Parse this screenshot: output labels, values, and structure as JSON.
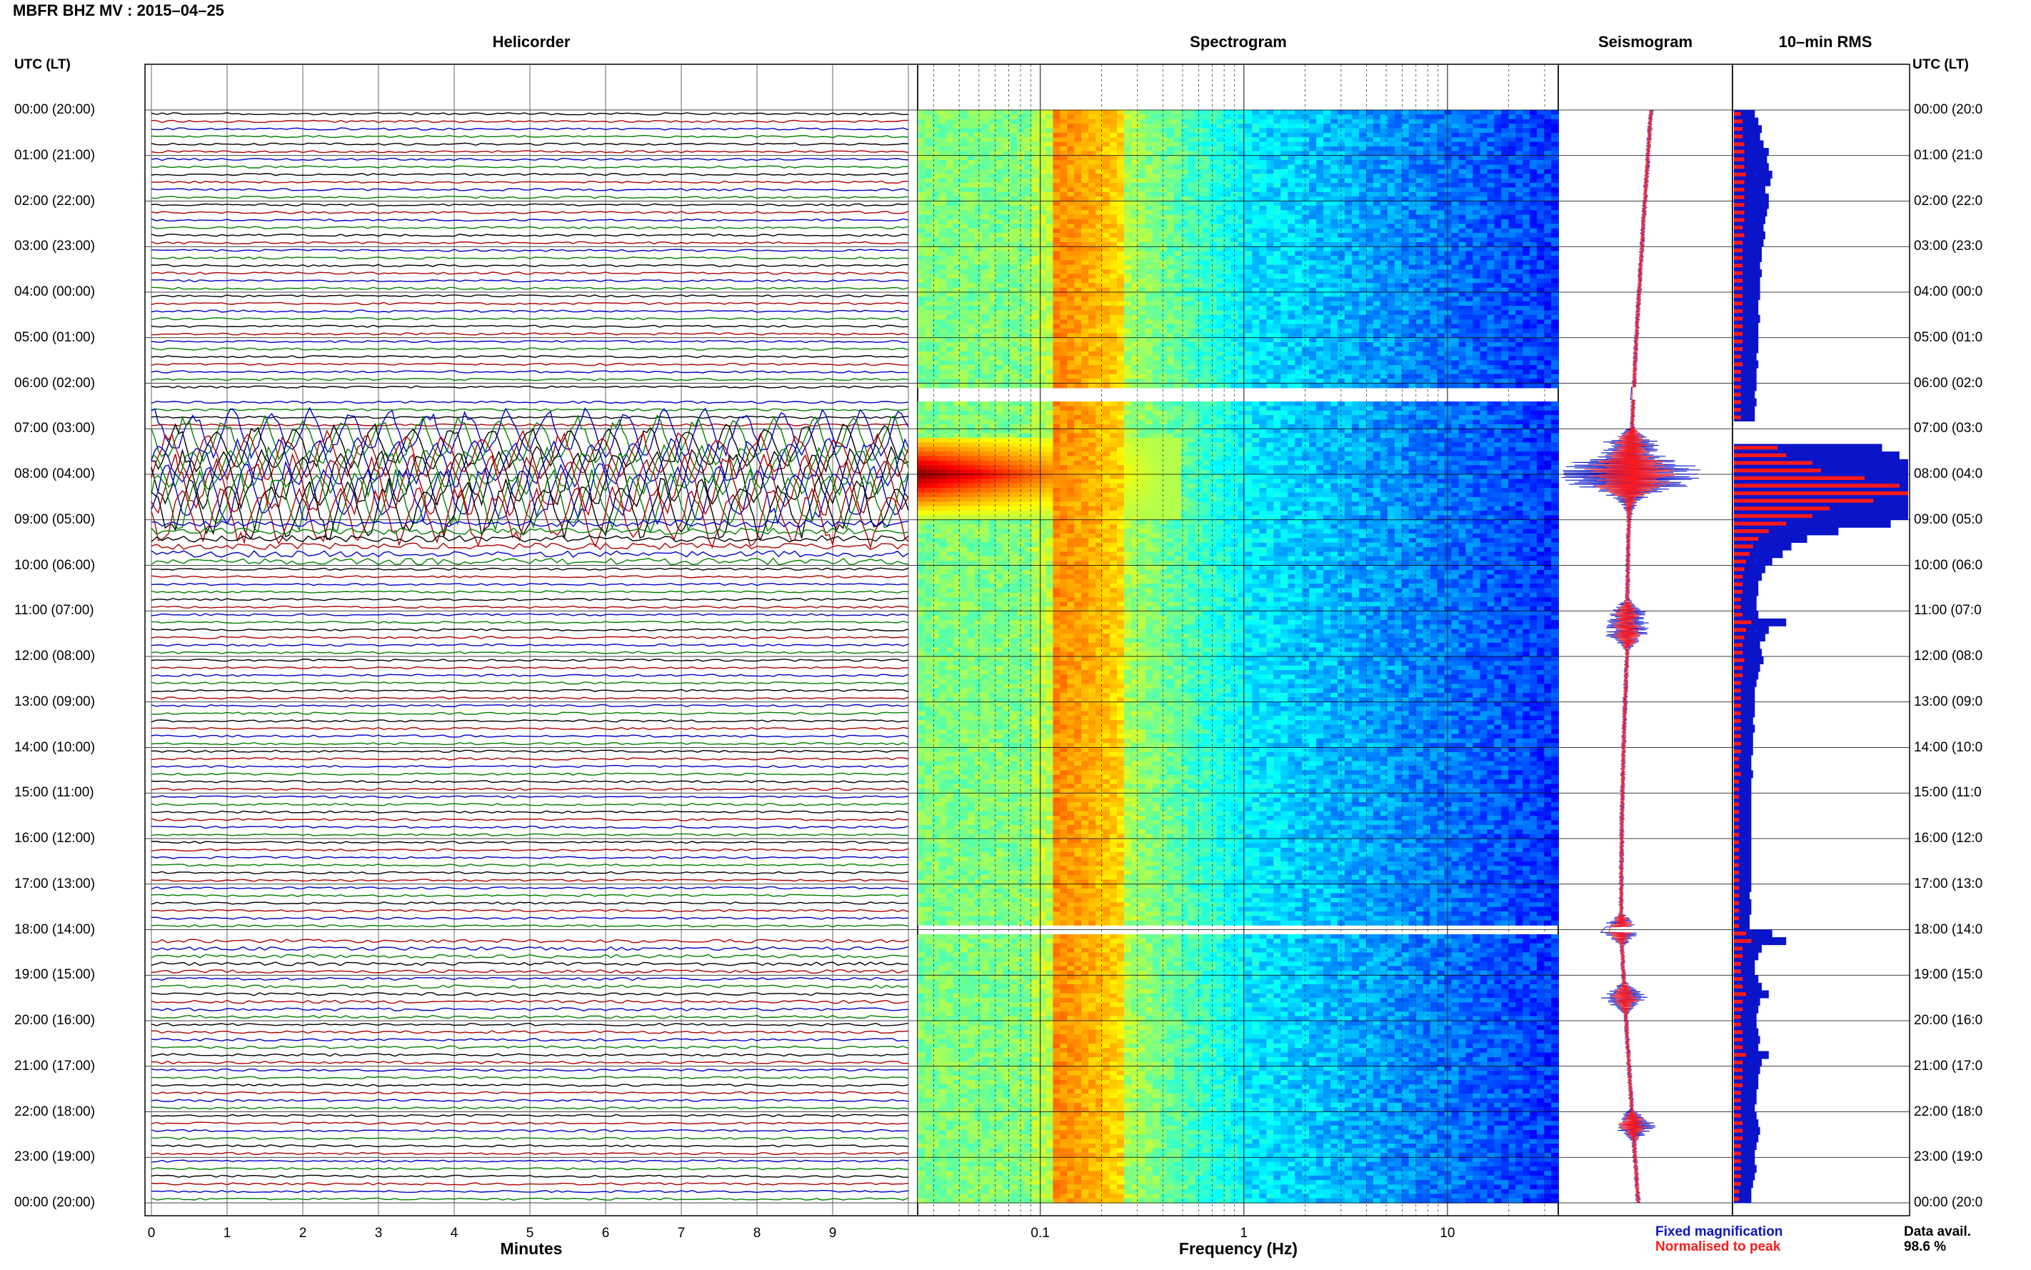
{
  "header": {
    "station": "MBFR BHZ MV",
    "separator": ":",
    "date": "2015–04–25"
  },
  "panels": {
    "helicorder": "Helicorder",
    "spectrogram": "Spectrogram",
    "seismogram": "Seismogram",
    "rms": "10–min RMS"
  },
  "time_axis": {
    "heading_left": "UTC (LT)",
    "heading_right": "UTC (LT)",
    "labels": [
      "00:00 (20:00)",
      "01:00 (21:00)",
      "02:00 (22:00)",
      "03:00 (23:00)",
      "04:00 (00:00)",
      "05:00 (01:00)",
      "06:00 (02:00)",
      "07:00 (03:00)",
      "08:00 (04:00)",
      "09:00 (05:00)",
      "10:00 (06:00)",
      "11:00 (07:00)",
      "12:00 (08:00)",
      "13:00 (09:00)",
      "14:00 (10:00)",
      "15:00 (11:00)",
      "16:00 (12:00)",
      "17:00 (13:00)",
      "18:00 (14:00)",
      "19:00 (15:00)",
      "20:00 (16:00)",
      "21:00 (17:00)",
      "22:00 (18:00)",
      "23:00 (19:00)",
      "00:00 (20:00)"
    ],
    "labels_right": [
      "00:00 (20:0",
      "01:00 (21:0",
      "02:00 (22:0",
      "03:00 (23:0",
      "04:00 (00:0",
      "05:00 (01:0",
      "06:00 (02:0",
      "07:00 (03:0",
      "08:00 (04:0",
      "09:00 (05:0",
      "10:00 (06:0",
      "11:00 (07:0",
      "12:00 (08:0",
      "13:00 (09:0",
      "14:00 (10:0",
      "15:00 (11:0",
      "16:00 (12:0",
      "17:00 (13:0",
      "18:00 (14:0",
      "19:00 (15:0",
      "20:00 (16:0",
      "21:00 (17:0",
      "22:00 (18:0",
      "23:00 (19:0",
      "00:00 (20:0"
    ]
  },
  "helicorder_axis": {
    "xlabel": "Minutes",
    "ticks": [
      "0",
      "1",
      "2",
      "3",
      "4",
      "5",
      "6",
      "7",
      "8",
      "9"
    ]
  },
  "spectrogram_axis": {
    "xlabel": "Frequency (Hz)",
    "ticks": [
      "0.1",
      "1",
      "10"
    ]
  },
  "legend": {
    "fixed": "Fixed magnification",
    "normalised": "Normalised to peak",
    "fixed_color": "#0a14c8",
    "normalised_color": "#ff1a1a"
  },
  "availability": {
    "label": "Data avail.",
    "value": "98.6 %"
  },
  "colors": {
    "trace_cycle": [
      "#000000",
      "#b00000",
      "#0000cc",
      "#008000"
    ],
    "spectro_low": "#1010b0",
    "spectro_mid": "#20c0e0",
    "spectro_high": "#f0f020",
    "spectro_peak": "#a00000"
  },
  "chart_data": [
    {
      "type": "line",
      "name": "helicorder",
      "x_unit": "minutes",
      "xlim": [
        0,
        10
      ],
      "ylim_hours": [
        0,
        24
      ],
      "lines_per_hour": 6,
      "gaps_hours": [
        [
          6.1,
          6.35
        ],
        [
          17.95,
          18.05
        ]
      ],
      "amplitude_by_hour": [
        1,
        1,
        1,
        1,
        1,
        1,
        1,
        8,
        10,
        3,
        1,
        1,
        1,
        1,
        1,
        1,
        1,
        1,
        1.6,
        1.4,
        1.2,
        1,
        1,
        1
      ]
    },
    {
      "type": "heatmap",
      "name": "spectrogram",
      "x_unit": "Hz",
      "x_scale": "log",
      "xlim": [
        0.025,
        35
      ],
      "ylim_hours": [
        0,
        24
      ],
      "peak_region": {
        "freq_hz": [
          0.025,
          0.09
        ],
        "hours": [
          7.2,
          9.0
        ]
      },
      "bright_band_hz": [
        0.12,
        0.25
      ]
    },
    {
      "type": "line",
      "name": "seismogram",
      "series": [
        {
          "name": "Fixed magnification",
          "color": "#0a14c8"
        },
        {
          "name": "Normalised to peak",
          "color": "#ff1a1a"
        }
      ],
      "event_hours": [
        7.3,
        7.8,
        8.2,
        11.1,
        11.5,
        18.0,
        19.5,
        22.3
      ]
    },
    {
      "type": "bar",
      "name": "rms",
      "orientation": "horizontal",
      "bins_per_hour": 6,
      "values_fixed": [
        0.12,
        0.14,
        0.16,
        0.15,
        0.17,
        0.2,
        0.19,
        0.2,
        0.22,
        0.21,
        0.18,
        0.2,
        0.2,
        0.19,
        0.18,
        0.17,
        0.18,
        0.17,
        0.16,
        0.16,
        0.15,
        0.16,
        0.15,
        0.15,
        0.15,
        0.14,
        0.14,
        0.15,
        0.14,
        0.14,
        0.14,
        0.14,
        0.13,
        0.14,
        0.13,
        0.13,
        0.13,
        0.12,
        0.13,
        0.12,
        0.12,
        0.0,
        0.0,
        0.0,
        0.85,
        0.95,
        1.0,
        1.0,
        1.0,
        1.0,
        1.0,
        1.0,
        1.0,
        1.0,
        0.9,
        0.6,
        0.42,
        0.33,
        0.28,
        0.22,
        0.18,
        0.16,
        0.14,
        0.14,
        0.13,
        0.13,
        0.14,
        0.3,
        0.2,
        0.18,
        0.15,
        0.16,
        0.17,
        0.15,
        0.14,
        0.13,
        0.12,
        0.12,
        0.12,
        0.12,
        0.11,
        0.12,
        0.11,
        0.11,
        0.11,
        0.1,
        0.1,
        0.11,
        0.1,
        0.1,
        0.1,
        0.1,
        0.1,
        0.1,
        0.1,
        0.1,
        0.1,
        0.1,
        0.1,
        0.1,
        0.1,
        0.1,
        0.1,
        0.09,
        0.1,
        0.1,
        0.09,
        0.09,
        0.22,
        0.3,
        0.16,
        0.14,
        0.12,
        0.12,
        0.14,
        0.16,
        0.2,
        0.15,
        0.14,
        0.13,
        0.13,
        0.14,
        0.15,
        0.14,
        0.2,
        0.16,
        0.15,
        0.14,
        0.14,
        0.13,
        0.13,
        0.12,
        0.13,
        0.14,
        0.15,
        0.14,
        0.13,
        0.12,
        0.12,
        0.13,
        0.12,
        0.11,
        0.1,
        0.1
      ],
      "values_norm": [
        0.04,
        0.05,
        0.05,
        0.05,
        0.06,
        0.06,
        0.06,
        0.06,
        0.07,
        0.06,
        0.06,
        0.06,
        0.06,
        0.06,
        0.06,
        0.05,
        0.06,
        0.05,
        0.05,
        0.05,
        0.05,
        0.05,
        0.05,
        0.05,
        0.05,
        0.05,
        0.05,
        0.05,
        0.05,
        0.05,
        0.05,
        0.05,
        0.04,
        0.05,
        0.04,
        0.04,
        0.04,
        0.04,
        0.04,
        0.04,
        0.04,
        0.0,
        0.0,
        0.0,
        0.25,
        0.3,
        0.45,
        0.5,
        0.75,
        0.95,
        1.0,
        0.8,
        0.55,
        0.45,
        0.3,
        0.2,
        0.14,
        0.11,
        0.09,
        0.07,
        0.06,
        0.05,
        0.05,
        0.05,
        0.04,
        0.04,
        0.05,
        0.1,
        0.07,
        0.06,
        0.05,
        0.05,
        0.06,
        0.05,
        0.05,
        0.04,
        0.04,
        0.04,
        0.04,
        0.04,
        0.04,
        0.04,
        0.04,
        0.04,
        0.04,
        0.03,
        0.03,
        0.04,
        0.03,
        0.03,
        0.03,
        0.03,
        0.03,
        0.03,
        0.03,
        0.03,
        0.03,
        0.03,
        0.03,
        0.03,
        0.03,
        0.03,
        0.03,
        0.03,
        0.03,
        0.03,
        0.03,
        0.03,
        0.07,
        0.1,
        0.05,
        0.05,
        0.04,
        0.04,
        0.05,
        0.05,
        0.07,
        0.05,
        0.05,
        0.04,
        0.04,
        0.05,
        0.05,
        0.05,
        0.07,
        0.05,
        0.05,
        0.05,
        0.05,
        0.04,
        0.04,
        0.04,
        0.04,
        0.05,
        0.05,
        0.05,
        0.04,
        0.04,
        0.04,
        0.04,
        0.04,
        0.04,
        0.03,
        0.03
      ]
    }
  ]
}
